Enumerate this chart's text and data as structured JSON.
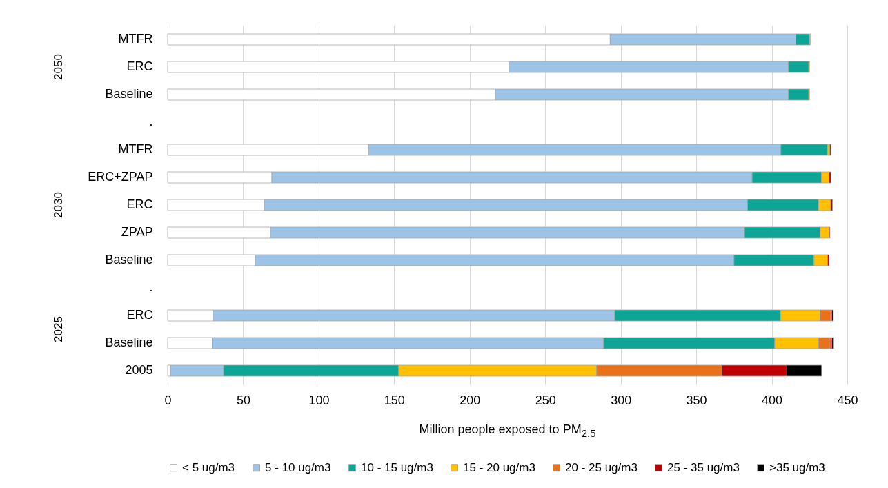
{
  "chart_data": {
    "type": "bar",
    "orientation": "horizontal",
    "stacked": true,
    "xlabel": "Million people exposed to PM$_{2.5}$",
    "categories": [
      "MTFR",
      "ERC",
      "Baseline",
      ".",
      "MTFR",
      "ERC+ZPAP",
      "ERC",
      "ZPAP",
      "Baseline",
      ".",
      "ERC",
      "Baseline",
      "2005"
    ],
    "annotations": [
      "2050",
      "2030",
      "2025"
    ],
    "series": [
      {
        "name": "< 5 ug/m3",
        "color": "#ffffff",
        "values": [
          293,
          226,
          217,
          null,
          133,
          69,
          64,
          68,
          58,
          null,
          30,
          29.5,
          2
        ]
      },
      {
        "name": "5 - 10 ug/m3",
        "color": "#9dc3e6",
        "values": [
          123,
          185,
          194,
          null,
          273,
          318,
          320,
          314,
          317,
          null,
          266,
          259,
          35
        ]
      },
      {
        "name": "10 - 15 ug/m3",
        "color": "#0ca596",
        "values": [
          9,
          13.5,
          13.5,
          null,
          31,
          46,
          47,
          50,
          53,
          null,
          110,
          113.5,
          116
        ]
      },
      {
        "name": "15 - 20 ug/m3",
        "color": "#ffc000",
        "values": [
          0.5,
          0.5,
          0.5,
          null,
          1.5,
          5,
          8,
          6,
          9,
          null,
          26,
          29,
          131
        ]
      },
      {
        "name": "20 - 25 ug/m3",
        "color": "#e97119",
        "values": [
          null,
          null,
          null,
          null,
          null,
          null,
          null,
          null,
          null,
          null,
          7,
          7.7,
          83
        ]
      },
      {
        "name": "25 - 35 ug/m3",
        "color": "#c00000",
        "values": [
          null,
          null,
          null,
          null,
          0.8,
          1.2,
          1.2,
          0.5,
          1,
          null,
          0.8,
          1.1,
          43
        ]
      },
      {
        "name": ">35 ug/m3",
        "color": "#000000",
        "values": [
          null,
          null,
          null,
          null,
          null,
          null,
          null,
          null,
          null,
          null,
          1,
          1.2,
          23
        ]
      }
    ],
    "xlim": [
      0,
      450
    ],
    "xticks": [
      0,
      50,
      100,
      150,
      200,
      250,
      300,
      350,
      400,
      450
    ],
    "grid": "x",
    "legend": "bottom"
  }
}
